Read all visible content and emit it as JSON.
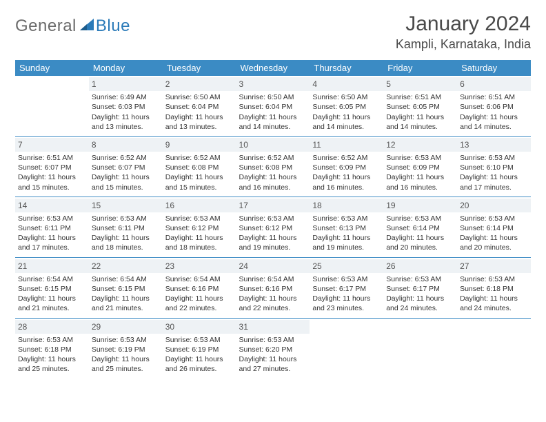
{
  "logo": {
    "general": "General",
    "blue": "Blue"
  },
  "title": "January 2024",
  "location": "Kampli, Karnataka, India",
  "header_color": "#3b8bc4",
  "daynum_bg": "#eef2f5",
  "weekdays": [
    "Sunday",
    "Monday",
    "Tuesday",
    "Wednesday",
    "Thursday",
    "Friday",
    "Saturday"
  ],
  "weeks": [
    [
      null,
      {
        "n": "1",
        "sr": "Sunrise: 6:49 AM",
        "ss": "Sunset: 6:03 PM",
        "dl": "Daylight: 11 hours and 13 minutes."
      },
      {
        "n": "2",
        "sr": "Sunrise: 6:50 AM",
        "ss": "Sunset: 6:04 PM",
        "dl": "Daylight: 11 hours and 13 minutes."
      },
      {
        "n": "3",
        "sr": "Sunrise: 6:50 AM",
        "ss": "Sunset: 6:04 PM",
        "dl": "Daylight: 11 hours and 14 minutes."
      },
      {
        "n": "4",
        "sr": "Sunrise: 6:50 AM",
        "ss": "Sunset: 6:05 PM",
        "dl": "Daylight: 11 hours and 14 minutes."
      },
      {
        "n": "5",
        "sr": "Sunrise: 6:51 AM",
        "ss": "Sunset: 6:05 PM",
        "dl": "Daylight: 11 hours and 14 minutes."
      },
      {
        "n": "6",
        "sr": "Sunrise: 6:51 AM",
        "ss": "Sunset: 6:06 PM",
        "dl": "Daylight: 11 hours and 14 minutes."
      }
    ],
    [
      {
        "n": "7",
        "sr": "Sunrise: 6:51 AM",
        "ss": "Sunset: 6:07 PM",
        "dl": "Daylight: 11 hours and 15 minutes."
      },
      {
        "n": "8",
        "sr": "Sunrise: 6:52 AM",
        "ss": "Sunset: 6:07 PM",
        "dl": "Daylight: 11 hours and 15 minutes."
      },
      {
        "n": "9",
        "sr": "Sunrise: 6:52 AM",
        "ss": "Sunset: 6:08 PM",
        "dl": "Daylight: 11 hours and 15 minutes."
      },
      {
        "n": "10",
        "sr": "Sunrise: 6:52 AM",
        "ss": "Sunset: 6:08 PM",
        "dl": "Daylight: 11 hours and 16 minutes."
      },
      {
        "n": "11",
        "sr": "Sunrise: 6:52 AM",
        "ss": "Sunset: 6:09 PM",
        "dl": "Daylight: 11 hours and 16 minutes."
      },
      {
        "n": "12",
        "sr": "Sunrise: 6:53 AM",
        "ss": "Sunset: 6:09 PM",
        "dl": "Daylight: 11 hours and 16 minutes."
      },
      {
        "n": "13",
        "sr": "Sunrise: 6:53 AM",
        "ss": "Sunset: 6:10 PM",
        "dl": "Daylight: 11 hours and 17 minutes."
      }
    ],
    [
      {
        "n": "14",
        "sr": "Sunrise: 6:53 AM",
        "ss": "Sunset: 6:11 PM",
        "dl": "Daylight: 11 hours and 17 minutes."
      },
      {
        "n": "15",
        "sr": "Sunrise: 6:53 AM",
        "ss": "Sunset: 6:11 PM",
        "dl": "Daylight: 11 hours and 18 minutes."
      },
      {
        "n": "16",
        "sr": "Sunrise: 6:53 AM",
        "ss": "Sunset: 6:12 PM",
        "dl": "Daylight: 11 hours and 18 minutes."
      },
      {
        "n": "17",
        "sr": "Sunrise: 6:53 AM",
        "ss": "Sunset: 6:12 PM",
        "dl": "Daylight: 11 hours and 19 minutes."
      },
      {
        "n": "18",
        "sr": "Sunrise: 6:53 AM",
        "ss": "Sunset: 6:13 PM",
        "dl": "Daylight: 11 hours and 19 minutes."
      },
      {
        "n": "19",
        "sr": "Sunrise: 6:53 AM",
        "ss": "Sunset: 6:14 PM",
        "dl": "Daylight: 11 hours and 20 minutes."
      },
      {
        "n": "20",
        "sr": "Sunrise: 6:53 AM",
        "ss": "Sunset: 6:14 PM",
        "dl": "Daylight: 11 hours and 20 minutes."
      }
    ],
    [
      {
        "n": "21",
        "sr": "Sunrise: 6:54 AM",
        "ss": "Sunset: 6:15 PM",
        "dl": "Daylight: 11 hours and 21 minutes."
      },
      {
        "n": "22",
        "sr": "Sunrise: 6:54 AM",
        "ss": "Sunset: 6:15 PM",
        "dl": "Daylight: 11 hours and 21 minutes."
      },
      {
        "n": "23",
        "sr": "Sunrise: 6:54 AM",
        "ss": "Sunset: 6:16 PM",
        "dl": "Daylight: 11 hours and 22 minutes."
      },
      {
        "n": "24",
        "sr": "Sunrise: 6:54 AM",
        "ss": "Sunset: 6:16 PM",
        "dl": "Daylight: 11 hours and 22 minutes."
      },
      {
        "n": "25",
        "sr": "Sunrise: 6:53 AM",
        "ss": "Sunset: 6:17 PM",
        "dl": "Daylight: 11 hours and 23 minutes."
      },
      {
        "n": "26",
        "sr": "Sunrise: 6:53 AM",
        "ss": "Sunset: 6:17 PM",
        "dl": "Daylight: 11 hours and 24 minutes."
      },
      {
        "n": "27",
        "sr": "Sunrise: 6:53 AM",
        "ss": "Sunset: 6:18 PM",
        "dl": "Daylight: 11 hours and 24 minutes."
      }
    ],
    [
      {
        "n": "28",
        "sr": "Sunrise: 6:53 AM",
        "ss": "Sunset: 6:18 PM",
        "dl": "Daylight: 11 hours and 25 minutes."
      },
      {
        "n": "29",
        "sr": "Sunrise: 6:53 AM",
        "ss": "Sunset: 6:19 PM",
        "dl": "Daylight: 11 hours and 25 minutes."
      },
      {
        "n": "30",
        "sr": "Sunrise: 6:53 AM",
        "ss": "Sunset: 6:19 PM",
        "dl": "Daylight: 11 hours and 26 minutes."
      },
      {
        "n": "31",
        "sr": "Sunrise: 6:53 AM",
        "ss": "Sunset: 6:20 PM",
        "dl": "Daylight: 11 hours and 27 minutes."
      },
      null,
      null,
      null
    ]
  ]
}
